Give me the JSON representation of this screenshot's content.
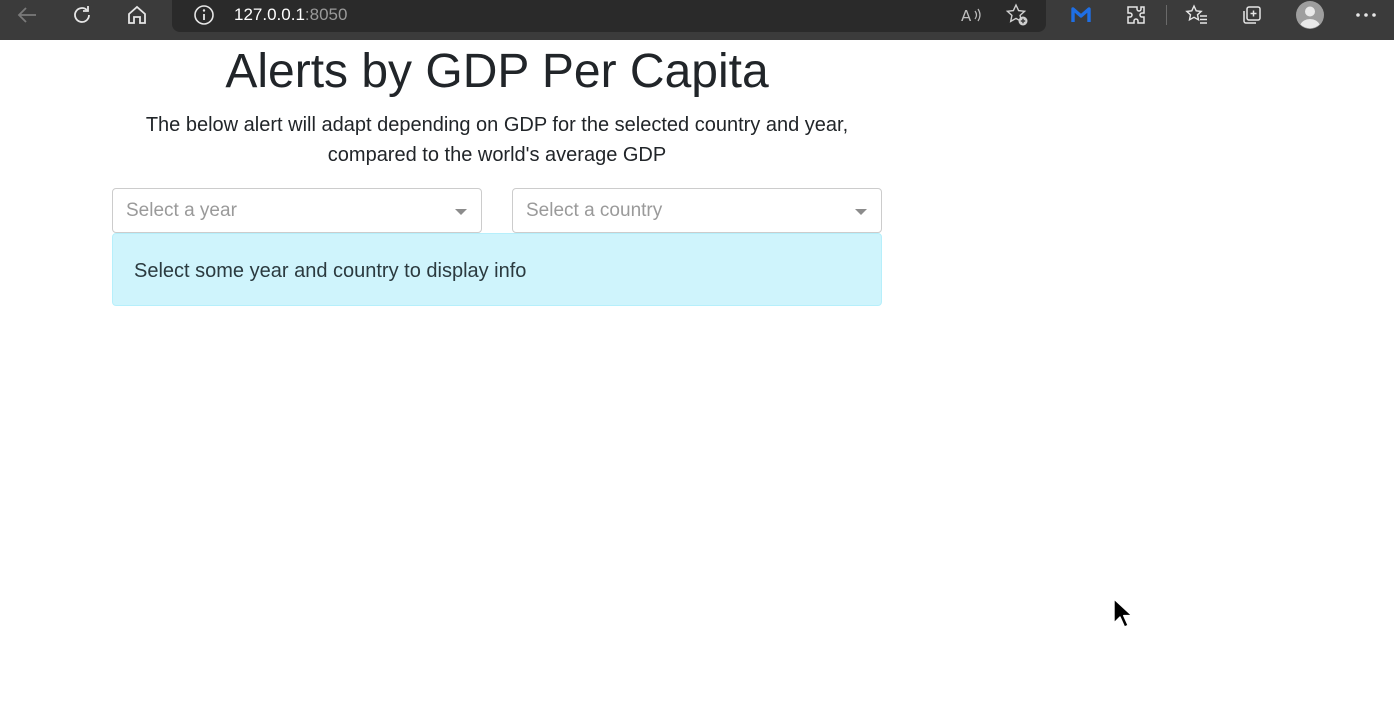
{
  "browser": {
    "url_host": "127.0.0.1",
    "url_port": ":8050",
    "icons": [
      "back-icon",
      "reload-icon",
      "home-icon",
      "info-icon",
      "read-aloud-icon",
      "add-favorite-icon",
      "malwarebytes-icon",
      "extensions-icon",
      "favorites-icon",
      "collections-icon",
      "profile-icon",
      "more-icon"
    ]
  },
  "page": {
    "title": "Alerts by GDP Per Capita",
    "description_line1": "The below alert will adapt depending on GDP for the selected country and year,",
    "description_line2": "compared to the world's average GDP"
  },
  "controls": {
    "year_placeholder": "Select a year",
    "country_placeholder": "Select a country"
  },
  "alert": {
    "text": "Select some year and country to display info",
    "color": "#cff4fc"
  },
  "colors": {
    "toolbar": "#3b3b3b",
    "urlbar": "#2a2a2a",
    "accent_extension": "#1f6fe5"
  }
}
